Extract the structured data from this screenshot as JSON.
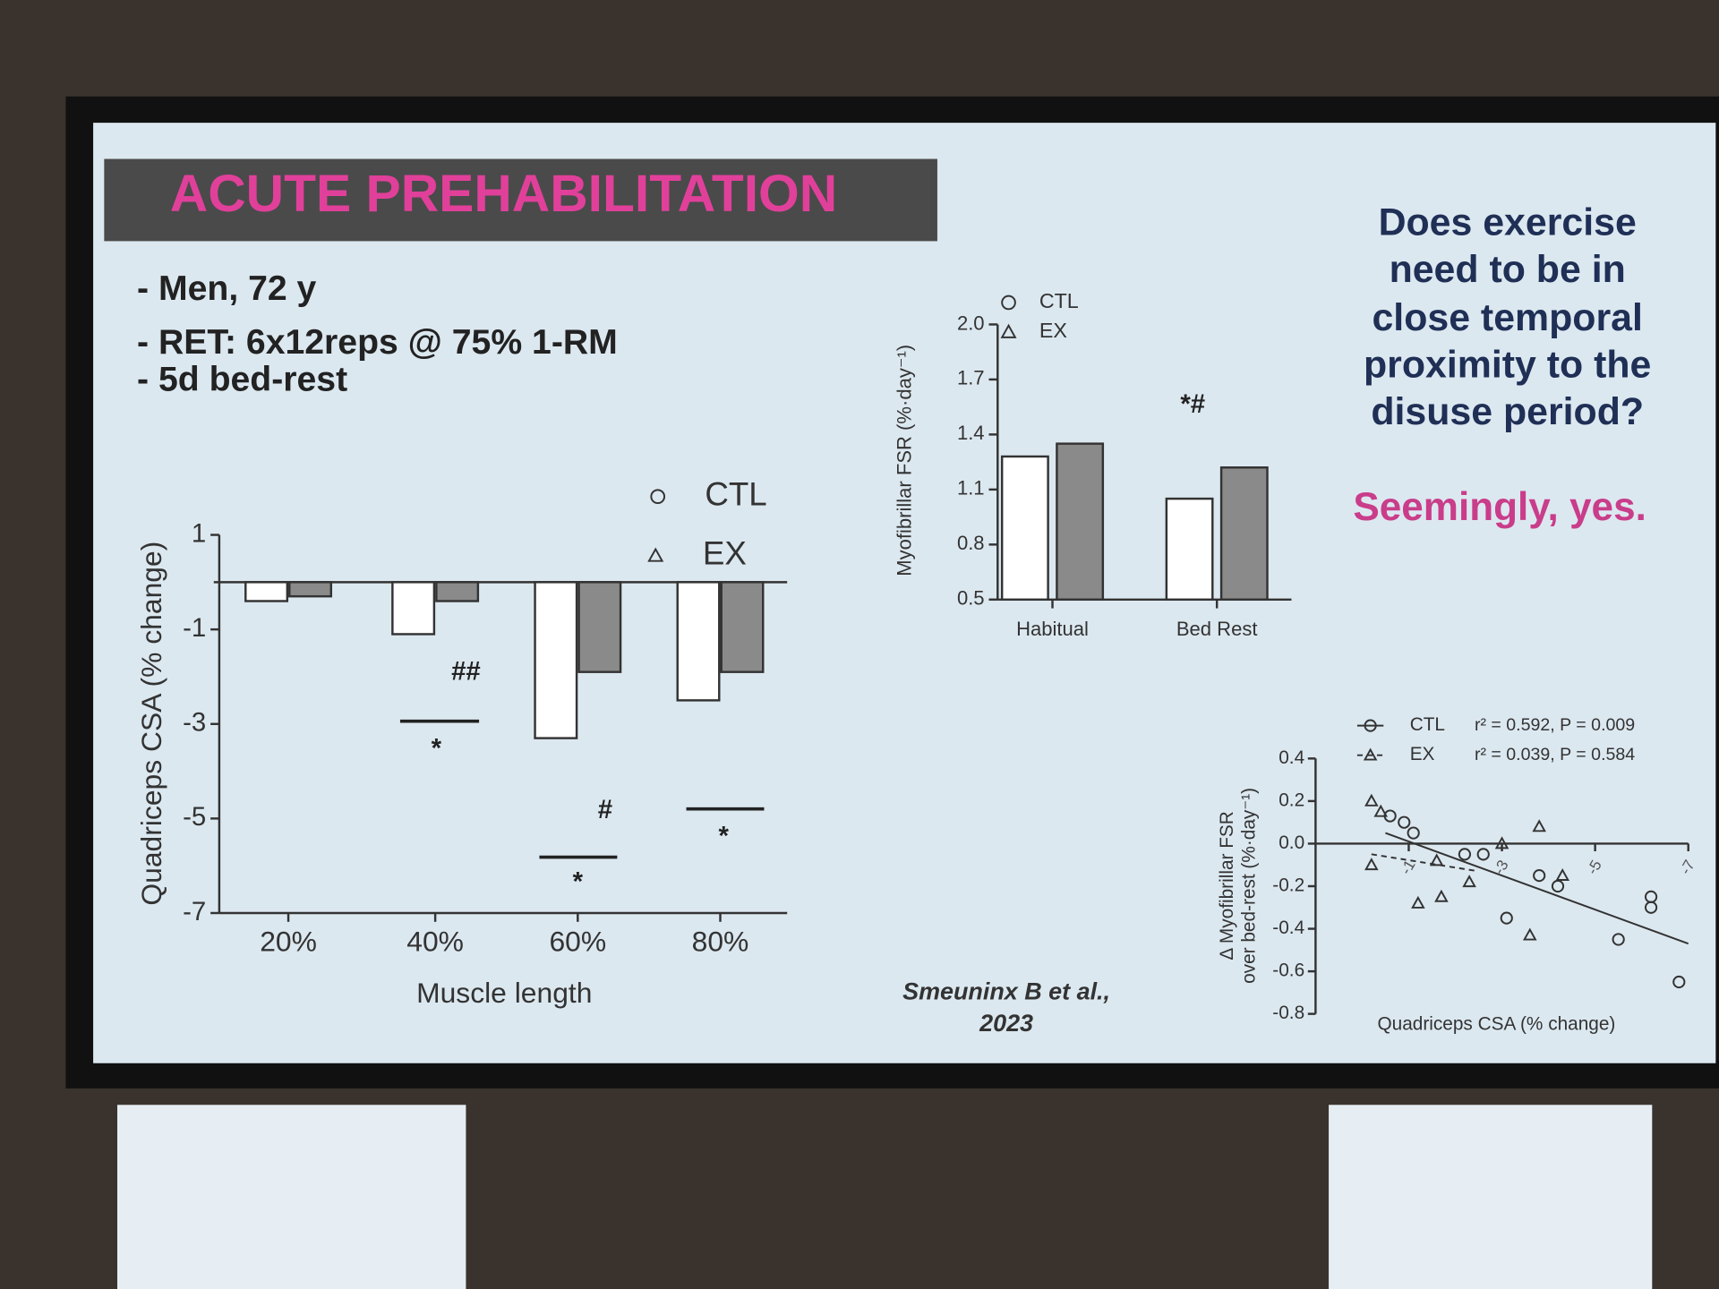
{
  "slide": {
    "title": "ACUTE PREHABILITATION",
    "bullets": [
      "- Men, 72 y",
      "- RET: 6x12reps @ 75% 1-RM",
      "- 5d bed-rest"
    ],
    "question": [
      "Does exercise",
      "need to be in",
      "close temporal",
      "proximity to the",
      "disuse period?"
    ],
    "answer": "Seemingly, yes.",
    "citation": [
      "Smeuninx B et al.,",
      "2023"
    ]
  },
  "chart_data": [
    {
      "type": "bar",
      "x_label": "Muscle length",
      "y_label": "Quadriceps CSA (% change)",
      "categories": [
        "20%",
        "40%",
        "60%",
        "80%"
      ],
      "series": [
        {
          "name": "CTL",
          "color": "#ffffff",
          "marker": "circle",
          "values": [
            -0.4,
            -1.1,
            -3.3,
            -2.5
          ]
        },
        {
          "name": "EX",
          "color": "#8a8a8a",
          "marker": "triangle",
          "values": [
            -0.3,
            -0.4,
            -1.9,
            -1.9
          ]
        }
      ],
      "ylim": [
        -7,
        1
      ],
      "yticks": [
        1,
        -1,
        -3,
        -5,
        -7
      ],
      "annotations": [
        "##",
        "*",
        "#",
        "*",
        "*"
      ]
    },
    {
      "type": "bar",
      "y_label": "Myofibrillar FSR (%·day⁻¹)",
      "categories": [
        "Habitual",
        "Bed Rest"
      ],
      "series": [
        {
          "name": "CTL",
          "color": "#ffffff",
          "marker": "circle",
          "values": [
            1.28,
            1.05
          ]
        },
        {
          "name": "EX",
          "color": "#8a8a8a",
          "marker": "triangle",
          "values": [
            1.35,
            1.22
          ]
        }
      ],
      "ylim": [
        0.5,
        2.0
      ],
      "yticks": [
        0.5,
        0.8,
        1.1,
        1.4,
        1.7,
        {
          "value": 2,
          "label": "2.0"
        }
      ],
      "annotations": [
        "*#"
      ]
    },
    {
      "type": "scatter",
      "x_label": "Quadriceps CSA (% change)",
      "y_label": [
        "Δ Myofibrillar FSR",
        "over bed-rest (%·day⁻¹)"
      ],
      "series": [
        {
          "name": "CTL",
          "stat": "r² = 0.592, P = 0.009",
          "color": "#333333",
          "marker": "circle",
          "line": "solid",
          "x": [
            -0.6,
            -0.9,
            -1.1,
            -2.2,
            -2.6,
            -3.8,
            -4.2,
            -3.1,
            -5.5,
            -6.2,
            -6.2,
            -6.8
          ],
          "values": [
            0.13,
            0.1,
            0.05,
            -0.05,
            -0.05,
            -0.15,
            -0.2,
            -0.35,
            -0.45,
            -0.25,
            -0.3,
            -0.65
          ],
          "fit_x": [
            -0.5,
            -7
          ],
          "fit_y": [
            0.05,
            -0.47
          ]
        },
        {
          "name": "EX",
          "stat": "r² = 0.039, P = 0.584",
          "color": "#333333",
          "marker": "triangle",
          "line": "dashed",
          "x": [
            -0.2,
            -0.4,
            -0.2,
            -1.6,
            -2.3,
            -1.7,
            -1.2,
            -3.6,
            -3.0,
            -3.8,
            -4.3
          ],
          "values": [
            0.2,
            0.15,
            -0.1,
            -0.08,
            -0.18,
            -0.25,
            -0.28,
            -0.43,
            0.0,
            0.08,
            -0.15
          ],
          "fit_x": [
            -0.2,
            -2.5
          ],
          "fit_y": [
            -0.05,
            -0.13
          ]
        }
      ],
      "xlim": [
        1,
        -7
      ],
      "xticks": [
        -1,
        -3,
        -5,
        -7
      ],
      "ylim": [
        -0.8,
        0.4
      ],
      "yticks": [
        0.4,
        0.2,
        {
          "value": 0,
          "label": "0.0"
        },
        -0.2,
        -0.4,
        -0.6,
        -0.8
      ]
    }
  ]
}
